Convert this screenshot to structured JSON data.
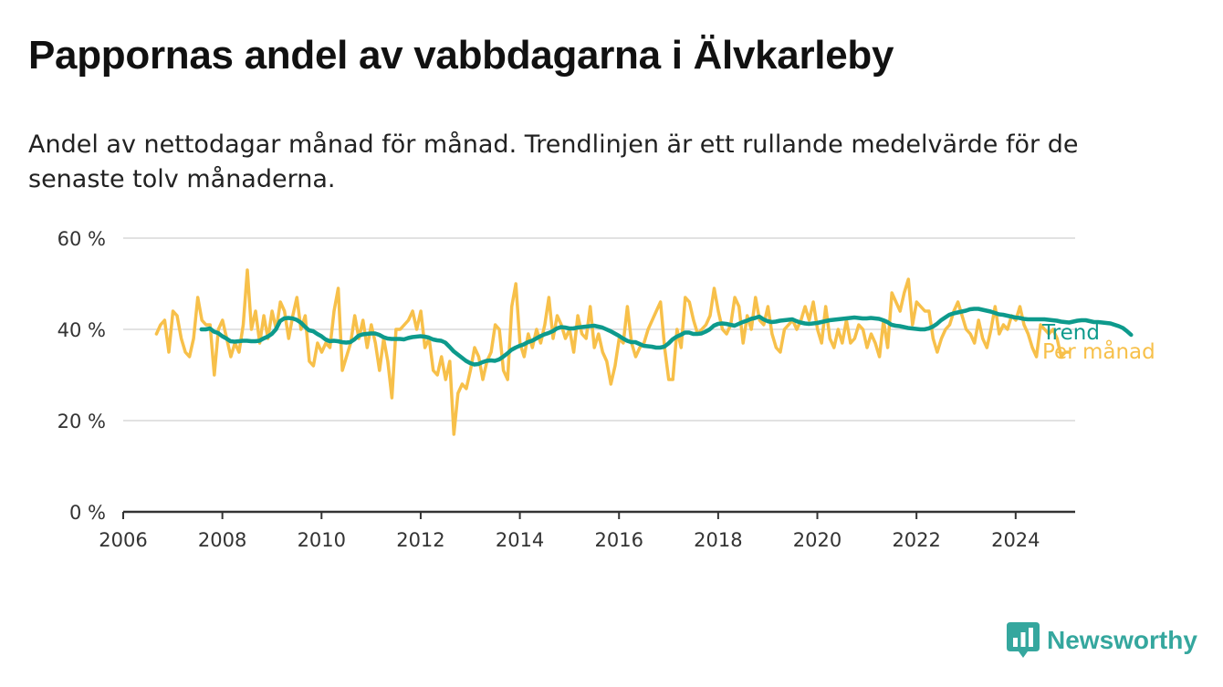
{
  "header": {
    "title": "Pappornas andel av vabbdagarna i Älvkarleby",
    "subtitle": "Andel av nettodagar månad för månad. Trendlinjen är ett rullande medelvärde för de senaste tolv månaderna."
  },
  "brand": {
    "name": "Newsworthy",
    "icon": "newsworthy-logo-icon",
    "color": "#35a79e"
  },
  "colors": {
    "monthly": "#f7c04a",
    "trend": "#0d9a8c",
    "grid": "#d9d9d9",
    "axis": "#333333"
  },
  "chart_data": {
    "type": "line",
    "title": "Pappornas andel av vabbdagarna i Älvkarleby",
    "xlabel": "",
    "ylabel": "",
    "xlim": [
      2006,
      2025.2
    ],
    "ylim": [
      0,
      60
    ],
    "x_ticks": [
      2006,
      2008,
      2010,
      2012,
      2014,
      2016,
      2018,
      2020,
      2022,
      2024
    ],
    "y_ticks": [
      0,
      20,
      40,
      60
    ],
    "y_tick_labels": [
      "0 %",
      "20 %",
      "40 %",
      "60 %"
    ],
    "grid": true,
    "legend_position": "right, at line ends",
    "series": [
      {
        "name": "Per månad",
        "x_start": 2006.67,
        "step": 0.08333,
        "values": [
          39,
          41,
          42,
          35,
          44,
          43,
          38,
          35,
          34,
          38,
          47,
          42,
          41,
          41,
          30,
          40,
          42,
          38,
          34,
          37,
          35,
          41,
          53,
          40,
          44,
          37,
          43,
          38,
          44,
          40,
          46,
          44,
          38,
          43,
          47,
          40,
          43,
          33,
          32,
          37,
          35,
          37,
          36,
          44,
          49,
          31,
          34,
          37,
          43,
          38,
          42,
          36,
          41,
          37,
          31,
          38,
          33,
          25,
          40,
          40,
          41,
          42,
          44,
          40,
          44,
          36,
          38,
          31,
          30,
          34,
          29,
          33,
          17,
          26,
          28,
          27,
          31,
          36,
          34,
          29,
          33,
          35,
          41,
          40,
          31,
          29,
          45,
          50,
          37,
          34,
          39,
          36,
          40,
          37,
          41,
          47,
          38,
          43,
          41,
          38,
          40,
          35,
          43,
          39,
          38,
          45,
          36,
          39,
          35,
          33,
          28,
          32,
          38,
          37,
          45,
          37,
          34,
          36,
          37,
          40,
          42,
          44,
          46,
          36,
          29,
          29,
          40,
          36,
          47,
          46,
          42,
          39,
          40,
          41,
          43,
          49,
          44,
          40,
          39,
          41,
          47,
          45,
          37,
          43,
          40,
          47,
          42,
          41,
          45,
          39,
          36,
          35,
          40,
          41,
          42,
          40,
          42,
          45,
          42,
          46,
          40,
          37,
          45,
          38,
          36,
          40,
          37,
          42,
          37,
          38,
          41,
          40,
          36,
          39,
          37,
          34,
          42,
          36,
          48,
          46,
          44,
          48,
          51,
          41,
          46,
          45,
          44,
          44,
          38,
          35,
          38,
          40,
          41,
          44,
          46,
          43,
          40,
          39,
          37,
          42,
          38,
          36,
          40,
          45,
          39,
          41,
          40,
          43,
          42,
          45,
          41,
          39,
          36,
          34,
          41,
          40,
          39,
          40,
          38,
          34,
          35,
          35
        ]
      },
      {
        "name": "Trend",
        "x_start": 2007.58,
        "step": 0.08333,
        "values": [
          40,
          40,
          40.2,
          39.5,
          39.2,
          38.5,
          38,
          37.4,
          37.3,
          37.4,
          37.5,
          37.5,
          37.4,
          37.4,
          37.5,
          38,
          38.4,
          39,
          40,
          41.8,
          42.4,
          42.5,
          42.4,
          42.1,
          41.5,
          40.6,
          39.8,
          39.6,
          39,
          38.5,
          37.8,
          37.4,
          37.5,
          37.4,
          37.2,
          37.1,
          37.2,
          37.8,
          38.6,
          38.9,
          39,
          39.1,
          39.1,
          38.8,
          38.3,
          38,
          37.9,
          37.9,
          37.9,
          37.8,
          38.1,
          38.3,
          38.4,
          38.5,
          38.4,
          38.2,
          37.8,
          37.6,
          37.5,
          37.1,
          36.2,
          35.2,
          34.5,
          33.8,
          33.1,
          32.6,
          32.3,
          32.4,
          32.8,
          33.1,
          33.2,
          33.1,
          33.4,
          34,
          34.7,
          35.5,
          36,
          36.4,
          36.7,
          37.2,
          37.5,
          38,
          38.5,
          38.9,
          39.2,
          39.6,
          40.2,
          40.5,
          40.4,
          40.2,
          40.2,
          40.4,
          40.5,
          40.6,
          40.7,
          40.8,
          40.6,
          40.4,
          40,
          39.6,
          39.1,
          38.6,
          38,
          37.5,
          37.2,
          37.2,
          36.8,
          36.4,
          36.3,
          36.2,
          36,
          36,
          36.2,
          36.9,
          37.8,
          38.4,
          38.8,
          39.3,
          39.3,
          39,
          39,
          39.1,
          39.5,
          40,
          40.8,
          41.2,
          41.3,
          41.2,
          41,
          40.8,
          41.2,
          41.6,
          41.9,
          42.3,
          42.5,
          42.8,
          42.2,
          41.8,
          41.6,
          41.7,
          41.9,
          42,
          42.1,
          42.2,
          41.8,
          41.5,
          41.3,
          41.2,
          41.3,
          41.4,
          41.6,
          41.8,
          42,
          42.1,
          42.2,
          42.3,
          42.4,
          42.5,
          42.6,
          42.5,
          42.4,
          42.4,
          42.5,
          42.4,
          42.3,
          42,
          41.6,
          41,
          40.8,
          40.7,
          40.5,
          40.3,
          40.2,
          40.1,
          40,
          40,
          40.2,
          40.6,
          41.2,
          42,
          42.6,
          43.2,
          43.5,
          43.7,
          43.9,
          44.1,
          44.4,
          44.5,
          44.5,
          44.3,
          44.1,
          43.9,
          43.6,
          43.3,
          43.2,
          43,
          42.8,
          42.6,
          42.5,
          42.3,
          42.2,
          42.2,
          42.2,
          42.2,
          42.2,
          42.1,
          42,
          41.9,
          41.7,
          41.6,
          41.5,
          41.7,
          41.9,
          42,
          42,
          41.8,
          41.6,
          41.6,
          41.5,
          41.4,
          41.3,
          41,
          40.7,
          40.3,
          39.6,
          38.8
        ]
      }
    ],
    "series_labels": {
      "trend": "Trend",
      "monthly": "Per månad"
    }
  }
}
